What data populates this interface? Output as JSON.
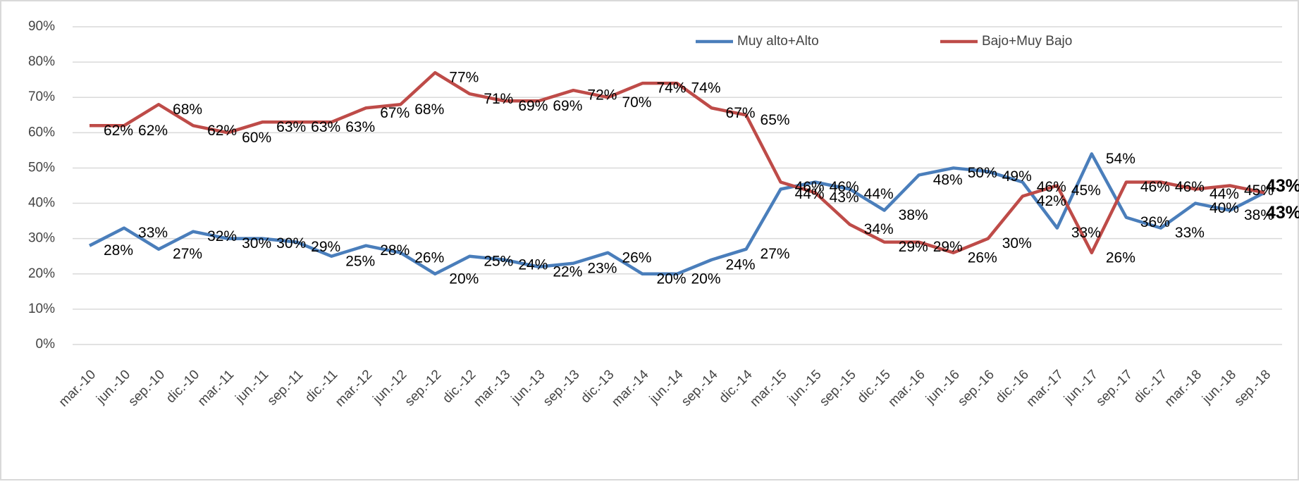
{
  "chart_data": {
    "type": "line",
    "categories": [
      "mar.-10",
      "jun.-10",
      "sep.-10",
      "dic.-10",
      "mar.-11",
      "jun.-11",
      "sep.-11",
      "dic.-11",
      "mar.-12",
      "jun.-12",
      "sep.-12",
      "dic.-12",
      "mar.-13",
      "jun.-13",
      "sep.-13",
      "dic.-13",
      "mar.-14",
      "jun.-14",
      "sep.-14",
      "dic.-14",
      "mar.-15",
      "jun.-15",
      "sep.-15",
      "dic.-15",
      "mar.-16",
      "jun.-16",
      "sep.-16",
      "dic.-16",
      "mar.-17",
      "jun.-17",
      "sep.-17",
      "dic.-17",
      "mar.-18",
      "jun.-18",
      "sep.-18"
    ],
    "series": [
      {
        "name": "Muy alto+Alto",
        "color": "#4a7ebb",
        "values": [
          28,
          33,
          27,
          32,
          30,
          30,
          29,
          25,
          28,
          26,
          20,
          25,
          24,
          22,
          23,
          26,
          20,
          20,
          24,
          27,
          44,
          46,
          44,
          38,
          48,
          50,
          49,
          46,
          33,
          54,
          36,
          33,
          40,
          38,
          43
        ],
        "value_labels": [
          "28%",
          "33%",
          "27%",
          "32%",
          "30%",
          "30%",
          "29%",
          "25%",
          "28%",
          "26%",
          "20%",
          "25%",
          "24%",
          "22%",
          "23%",
          "26%",
          "20%",
          "20%",
          "24%",
          "27%",
          "44%",
          "46%",
          "44%",
          "38%",
          "48%",
          "50%",
          "49%",
          "46%",
          "33%",
          "54%",
          "36%",
          "33%",
          "40%",
          "38%",
          "43%"
        ]
      },
      {
        "name": "Bajo+Muy Bajo",
        "color": "#be4b48",
        "values": [
          62,
          62,
          68,
          62,
          60,
          63,
          63,
          63,
          67,
          68,
          77,
          71,
          69,
          69,
          72,
          70,
          74,
          74,
          67,
          65,
          46,
          43,
          34,
          29,
          29,
          26,
          30,
          42,
          45,
          26,
          46,
          46,
          44,
          45,
          43
        ],
        "value_labels": [
          "62%",
          "62%",
          "68%",
          "62%",
          "60%",
          "63%",
          "63%",
          "63%",
          "67%",
          "68%",
          "77%",
          "71%",
          "69%",
          "69%",
          "72%",
          "70%",
          "74%",
          "74%",
          "67%",
          "65%",
          "46%",
          "43%",
          "34%",
          "29%",
          "29%",
          "26%",
          "30%",
          "42%",
          "45%",
          "26%",
          "46%",
          "46%",
          "44%",
          "45%",
          "43%"
        ]
      }
    ],
    "ylim": [
      0,
      90
    ],
    "yticks": [
      {
        "value": 0,
        "label": "0%"
      },
      {
        "value": 10,
        "label": "10%"
      },
      {
        "value": 20,
        "label": "20%"
      },
      {
        "value": 30,
        "label": "30%"
      },
      {
        "value": 40,
        "label": "40%"
      },
      {
        "value": 50,
        "label": "50%"
      },
      {
        "value": 60,
        "label": "60%"
      },
      {
        "value": 70,
        "label": "70%"
      },
      {
        "value": 80,
        "label": "80%"
      },
      {
        "value": 90,
        "label": "90%"
      }
    ],
    "grid": true,
    "legend": "top"
  }
}
